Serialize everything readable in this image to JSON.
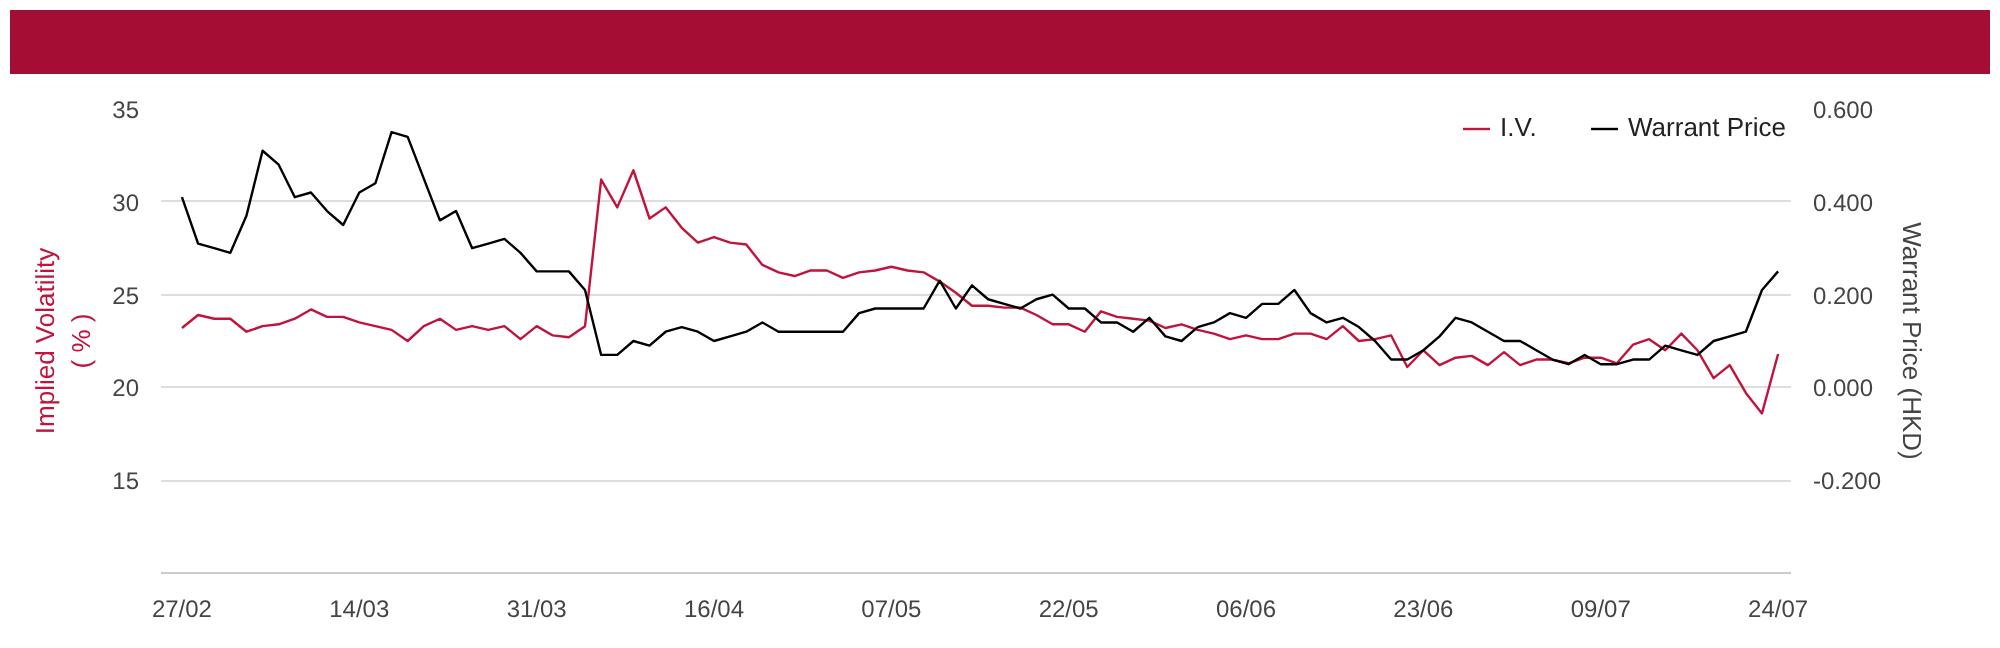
{
  "chart_data": {
    "type": "line",
    "ylabel": "Implied Volatility\n( % )",
    "y2label": "Warrant Price (HKD)",
    "categories": [
      "27/02",
      null,
      null,
      null,
      null,
      null,
      null,
      null,
      null,
      null,
      null,
      "14/03",
      null,
      null,
      null,
      null,
      null,
      null,
      null,
      null,
      null,
      null,
      "31/03",
      null,
      null,
      null,
      null,
      null,
      null,
      null,
      null,
      null,
      null,
      "16/04",
      null,
      null,
      null,
      null,
      null,
      null,
      null,
      null,
      null,
      null,
      "07/05",
      null,
      null,
      null,
      null,
      null,
      null,
      null,
      null,
      null,
      null,
      "22/05",
      null,
      null,
      null,
      null,
      null,
      null,
      null,
      null,
      null,
      null,
      "06/06",
      null,
      null,
      null,
      null,
      null,
      null,
      null,
      null,
      null,
      null,
      "23/06",
      null,
      null,
      null,
      null,
      null,
      null,
      null,
      null,
      null,
      null,
      "09/07",
      null,
      null,
      null,
      null,
      null,
      null,
      null,
      null,
      null,
      null,
      "24/07"
    ],
    "series": [
      {
        "name": "I.V.",
        "color": "#c0143c",
        "values": [
          23.2,
          23.9,
          23.7,
          23.7,
          23.0,
          23.3,
          23.4,
          23.7,
          24.2,
          23.8,
          23.8,
          23.5,
          23.3,
          23.1,
          22.5,
          23.3,
          23.7,
          23.1,
          23.3,
          23.1,
          23.3,
          22.6,
          23.3,
          22.8,
          22.7,
          23.3,
          31.2,
          29.7,
          31.7,
          29.1,
          29.7,
          28.6,
          27.8,
          28.1,
          27.8,
          27.7,
          26.6,
          26.2,
          26.0,
          26.3,
          26.3,
          25.9,
          26.2,
          26.3,
          26.5,
          26.3,
          26.2,
          25.7,
          25.1,
          24.4,
          24.4,
          24.3,
          24.3,
          23.9,
          23.4,
          23.4,
          23.0,
          24.1,
          23.8,
          23.7,
          23.6,
          23.2,
          23.4,
          23.1,
          22.9,
          22.6,
          22.8,
          22.6,
          22.6,
          22.9,
          22.9,
          22.6,
          23.3,
          22.5,
          22.6,
          22.8,
          21.1,
          22.0,
          21.2,
          21.6,
          21.7,
          21.2,
          21.9,
          21.2,
          21.5,
          21.5,
          21.3,
          21.6,
          21.6,
          21.3,
          22.3,
          22.6,
          22.0,
          22.9,
          22.0,
          20.5,
          21.2,
          19.7,
          18.6,
          21.8
        ]
      },
      {
        "name": "Warrant Price",
        "color": "#000000",
        "axis": "y2",
        "values": [
          0.41,
          0.31,
          0.3,
          0.29,
          0.37,
          0.51,
          0.48,
          0.41,
          0.42,
          0.38,
          0.35,
          0.42,
          0.44,
          0.55,
          0.54,
          0.45,
          0.36,
          0.38,
          0.3,
          0.31,
          0.32,
          0.29,
          0.25,
          0.25,
          0.25,
          0.21,
          0.07,
          0.07,
          0.1,
          0.09,
          0.12,
          0.13,
          0.12,
          0.1,
          0.11,
          0.12,
          0.14,
          0.12,
          0.12,
          0.12,
          0.12,
          0.12,
          0.16,
          0.17,
          0.17,
          0.17,
          0.17,
          0.23,
          0.17,
          0.22,
          0.19,
          0.18,
          0.17,
          0.19,
          0.2,
          0.17,
          0.17,
          0.14,
          0.14,
          0.12,
          0.15,
          0.11,
          0.1,
          0.13,
          0.14,
          0.16,
          0.15,
          0.18,
          0.18,
          0.21,
          0.16,
          0.14,
          0.15,
          0.13,
          0.1,
          0.06,
          0.06,
          0.08,
          0.11,
          0.15,
          0.14,
          0.12,
          0.1,
          0.1,
          0.08,
          0.06,
          0.05,
          0.07,
          0.05,
          0.05,
          0.06,
          0.06,
          0.09,
          0.08,
          0.07,
          0.1,
          0.11,
          0.12,
          0.21,
          0.25
        ]
      }
    ],
    "ylim": [
      10,
      35
    ],
    "yticks": [
      15,
      20,
      25,
      30,
      35
    ],
    "y2lim": [
      -0.4,
      0.6
    ],
    "y2ticks": [
      {
        "value": -0.2,
        "label": "-0.200"
      },
      {
        "value": 0,
        "label": "0.000"
      },
      {
        "value": 0.2,
        "label": "0.200"
      },
      {
        "value": 0.4,
        "label": "0.400"
      },
      {
        "value": 0.6,
        "label": "0.600"
      }
    ],
    "grid": "y",
    "legend": "top right",
    "marker": "none",
    "line_style": "solid"
  }
}
